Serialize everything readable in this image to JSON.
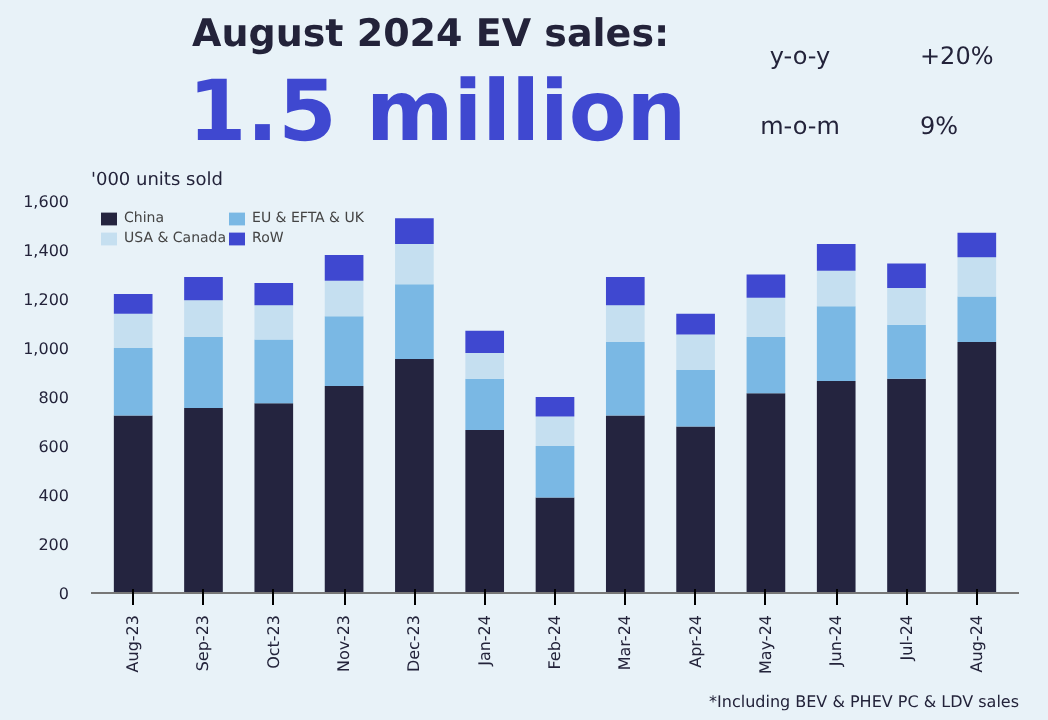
{
  "chart_data": {
    "type": "bar",
    "stacked": true,
    "title": "August 2024 EV sales:",
    "subtitle": "1.5 million",
    "ylabel": "'000 units sold",
    "annotations": [
      "y-o-y",
      "+20%",
      "m-o-m",
      "9%",
      "*Including BEV & PHEV PC & LDV sales"
    ],
    "categories": [
      "Aug-23",
      "Sep-23",
      "Oct-23",
      "Nov-23",
      "Dec-23",
      "Jan-24",
      "Feb-24",
      "Mar-24",
      "Apr-24",
      "May-24",
      "Jun-24",
      "Jul-24",
      "Aug-24"
    ],
    "series": [
      {
        "name": "China",
        "color": "#24243f",
        "values": [
          725,
          755,
          775,
          845,
          955,
          665,
          390,
          725,
          680,
          815,
          865,
          875,
          1025
        ]
      },
      {
        "name": "EU & EFTA & UK",
        "color": "#7ab8e4",
        "values": [
          275,
          290,
          260,
          285,
          305,
          210,
          210,
          300,
          230,
          230,
          305,
          220,
          185
        ]
      },
      {
        "name": "USA & Canada",
        "color": "#c5dff0",
        "values": [
          140,
          150,
          140,
          145,
          165,
          105,
          120,
          150,
          145,
          160,
          145,
          150,
          160
        ]
      },
      {
        "name": "RoW",
        "color": "#3f48d0",
        "values": [
          80,
          95,
          90,
          105,
          105,
          90,
          80,
          115,
          85,
          95,
          110,
          100,
          100
        ]
      }
    ],
    "ylim": [
      0,
      1600
    ],
    "yticks": [
      0,
      {
        "value": 200,
        "label": "200"
      },
      {
        "value": 400,
        "label": "400"
      },
      {
        "value": 600,
        "label": "600"
      },
      {
        "value": 800,
        "label": "800"
      },
      {
        "value": 1000,
        "label": "1,000"
      },
      {
        "value": 1200,
        "label": "1,200"
      },
      {
        "value": 1400,
        "label": "1,400"
      },
      {
        "value": 1600,
        "label": "1,600"
      }
    ],
    "grid": false,
    "legend": "top left"
  }
}
